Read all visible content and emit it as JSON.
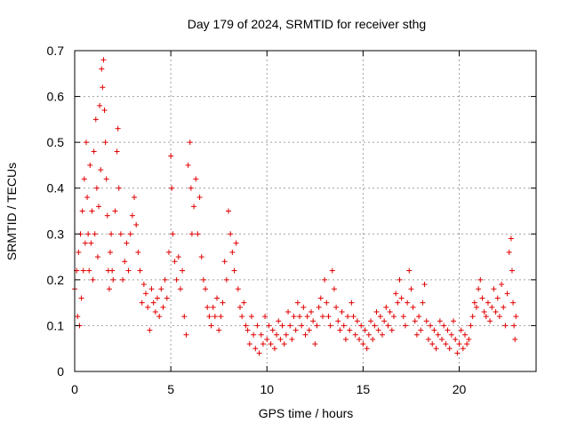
{
  "chart_data": {
    "type": "scatter",
    "title": "Day 179 of 2024, SRMTID for receiver sthg",
    "xlabel": "GPS time / hours",
    "ylabel": "SRMTID / TECUs",
    "xlim": [
      0,
      24
    ],
    "ylim": [
      0,
      0.7
    ],
    "x_ticks": [
      0,
      5,
      10,
      15,
      20
    ],
    "y_ticks": [
      0,
      0.1,
      0.2,
      0.3,
      0.4,
      0.5,
      0.6,
      0.7
    ],
    "x_tick_labels": [
      "0",
      "5",
      "10",
      "15",
      "20"
    ],
    "y_tick_labels": [
      "0",
      "0.1",
      "0.2",
      "0.3",
      "0.4",
      "0.5",
      "0.6",
      "0.7"
    ],
    "grid": true,
    "marker": "+",
    "color": "#e00000",
    "series": [
      {
        "name": "SRMTID",
        "points": [
          [
            0.0,
            0.18
          ],
          [
            0.1,
            0.22
          ],
          [
            0.15,
            0.12
          ],
          [
            0.2,
            0.26
          ],
          [
            0.25,
            0.1
          ],
          [
            0.3,
            0.3
          ],
          [
            0.35,
            0.16
          ],
          [
            0.4,
            0.35
          ],
          [
            0.45,
            0.22
          ],
          [
            0.5,
            0.42
          ],
          [
            0.55,
            0.28
          ],
          [
            0.6,
            0.5
          ],
          [
            0.65,
            0.38
          ],
          [
            0.7,
            0.3
          ],
          [
            0.75,
            0.22
          ],
          [
            0.8,
            0.45
          ],
          [
            0.85,
            0.28
          ],
          [
            0.9,
            0.35
          ],
          [
            0.95,
            0.2
          ],
          [
            1.0,
            0.48
          ],
          [
            1.05,
            0.3
          ],
          [
            1.1,
            0.55
          ],
          [
            1.15,
            0.4
          ],
          [
            1.2,
            0.25
          ],
          [
            1.25,
            0.36
          ],
          [
            1.3,
            0.58
          ],
          [
            1.35,
            0.44
          ],
          [
            1.4,
            0.66
          ],
          [
            1.45,
            0.62
          ],
          [
            1.5,
            0.68
          ],
          [
            1.55,
            0.57
          ],
          [
            1.6,
            0.5
          ],
          [
            1.65,
            0.42
          ],
          [
            1.7,
            0.34
          ],
          [
            1.75,
            0.22
          ],
          [
            1.8,
            0.18
          ],
          [
            1.85,
            0.26
          ],
          [
            1.9,
            0.3
          ],
          [
            1.95,
            0.22
          ],
          [
            2.0,
            0.2
          ],
          [
            2.1,
            0.35
          ],
          [
            2.2,
            0.48
          ],
          [
            2.25,
            0.53
          ],
          [
            2.3,
            0.4
          ],
          [
            2.4,
            0.3
          ],
          [
            2.5,
            0.2
          ],
          [
            2.6,
            0.24
          ],
          [
            2.7,
            0.28
          ],
          [
            2.8,
            0.22
          ],
          [
            2.9,
            0.3
          ],
          [
            3.0,
            0.34
          ],
          [
            3.1,
            0.38
          ],
          [
            3.2,
            0.32
          ],
          [
            3.3,
            0.26
          ],
          [
            3.4,
            0.22
          ],
          [
            3.5,
            0.15
          ],
          [
            3.6,
            0.19
          ],
          [
            3.7,
            0.17
          ],
          [
            3.8,
            0.14
          ],
          [
            3.9,
            0.09
          ],
          [
            4.0,
            0.18
          ],
          [
            4.1,
            0.15
          ],
          [
            4.2,
            0.13
          ],
          [
            4.3,
            0.16
          ],
          [
            4.4,
            0.12
          ],
          [
            4.5,
            0.18
          ],
          [
            4.6,
            0.14
          ],
          [
            4.7,
            0.2
          ],
          [
            4.8,
            0.16
          ],
          [
            4.9,
            0.26
          ],
          [
            5.0,
            0.47
          ],
          [
            5.05,
            0.4
          ],
          [
            5.1,
            0.3
          ],
          [
            5.2,
            0.24
          ],
          [
            5.3,
            0.2
          ],
          [
            5.4,
            0.25
          ],
          [
            5.5,
            0.18
          ],
          [
            5.6,
            0.22
          ],
          [
            5.7,
            0.12
          ],
          [
            5.8,
            0.08
          ],
          [
            5.9,
            0.45
          ],
          [
            6.0,
            0.5
          ],
          [
            6.05,
            0.4
          ],
          [
            6.1,
            0.3
          ],
          [
            6.2,
            0.36
          ],
          [
            6.3,
            0.42
          ],
          [
            6.4,
            0.3
          ],
          [
            6.5,
            0.38
          ],
          [
            6.6,
            0.25
          ],
          [
            6.7,
            0.2
          ],
          [
            6.8,
            0.18
          ],
          [
            6.9,
            0.14
          ],
          [
            7.0,
            0.12
          ],
          [
            7.1,
            0.1
          ],
          [
            7.2,
            0.14
          ],
          [
            7.3,
            0.12
          ],
          [
            7.4,
            0.16
          ],
          [
            7.5,
            0.09
          ],
          [
            7.6,
            0.12
          ],
          [
            7.7,
            0.15
          ],
          [
            7.8,
            0.24
          ],
          [
            7.9,
            0.2
          ],
          [
            8.0,
            0.35
          ],
          [
            8.1,
            0.3
          ],
          [
            8.2,
            0.26
          ],
          [
            8.3,
            0.22
          ],
          [
            8.4,
            0.28
          ],
          [
            8.5,
            0.18
          ],
          [
            8.6,
            0.14
          ],
          [
            8.7,
            0.12
          ],
          [
            8.8,
            0.15
          ],
          [
            8.9,
            0.1
          ],
          [
            9.0,
            0.09
          ],
          [
            9.1,
            0.06
          ],
          [
            9.2,
            0.12
          ],
          [
            9.3,
            0.08
          ],
          [
            9.4,
            0.05
          ],
          [
            9.5,
            0.1
          ],
          [
            9.6,
            0.04
          ],
          [
            9.7,
            0.08
          ],
          [
            9.8,
            0.06
          ],
          [
            9.9,
            0.12
          ],
          [
            10.0,
            0.07
          ],
          [
            10.1,
            0.1
          ],
          [
            10.2,
            0.06
          ],
          [
            10.3,
            0.09
          ],
          [
            10.4,
            0.05
          ],
          [
            10.5,
            0.08
          ],
          [
            10.6,
            0.11
          ],
          [
            10.7,
            0.07
          ],
          [
            10.8,
            0.1
          ],
          [
            10.9,
            0.06
          ],
          [
            11.0,
            0.08
          ],
          [
            11.1,
            0.13
          ],
          [
            11.2,
            0.1
          ],
          [
            11.3,
            0.07
          ],
          [
            11.4,
            0.12
          ],
          [
            11.5,
            0.09
          ],
          [
            11.6,
            0.15
          ],
          [
            11.7,
            0.12
          ],
          [
            11.8,
            0.1
          ],
          [
            11.9,
            0.14
          ],
          [
            12.0,
            0.08
          ],
          [
            12.1,
            0.12
          ],
          [
            12.2,
            0.09
          ],
          [
            12.3,
            0.13
          ],
          [
            12.4,
            0.11
          ],
          [
            12.5,
            0.06
          ],
          [
            12.6,
            0.1
          ],
          [
            12.7,
            0.14
          ],
          [
            12.8,
            0.16
          ],
          [
            12.9,
            0.12
          ],
          [
            13.0,
            0.2
          ],
          [
            13.1,
            0.15
          ],
          [
            13.2,
            0.12
          ],
          [
            13.3,
            0.1
          ],
          [
            13.4,
            0.22
          ],
          [
            13.5,
            0.18
          ],
          [
            13.6,
            0.14
          ],
          [
            13.7,
            0.11
          ],
          [
            13.8,
            0.09
          ],
          [
            13.9,
            0.13
          ],
          [
            14.0,
            0.1
          ],
          [
            14.1,
            0.07
          ],
          [
            14.2,
            0.12
          ],
          [
            14.3,
            0.09
          ],
          [
            14.4,
            0.15
          ],
          [
            14.5,
            0.12
          ],
          [
            14.6,
            0.08
          ],
          [
            14.7,
            0.11
          ],
          [
            14.8,
            0.07
          ],
          [
            14.9,
            0.1
          ],
          [
            15.0,
            0.06
          ],
          [
            15.1,
            0.09
          ],
          [
            15.2,
            0.05
          ],
          [
            15.3,
            0.08
          ],
          [
            15.4,
            0.11
          ],
          [
            15.5,
            0.07
          ],
          [
            15.6,
            0.1
          ],
          [
            15.7,
            0.13
          ],
          [
            15.8,
            0.09
          ],
          [
            15.9,
            0.12
          ],
          [
            16.0,
            0.08
          ],
          [
            16.1,
            0.11
          ],
          [
            16.2,
            0.14
          ],
          [
            16.3,
            0.1
          ],
          [
            16.4,
            0.13
          ],
          [
            16.5,
            0.09
          ],
          [
            16.6,
            0.12
          ],
          [
            16.7,
            0.17
          ],
          [
            16.8,
            0.15
          ],
          [
            16.9,
            0.2
          ],
          [
            17.0,
            0.16
          ],
          [
            17.1,
            0.12
          ],
          [
            17.2,
            0.1
          ],
          [
            17.3,
            0.15
          ],
          [
            17.4,
            0.22
          ],
          [
            17.5,
            0.18
          ],
          [
            17.6,
            0.14
          ],
          [
            17.7,
            0.11
          ],
          [
            17.8,
            0.08
          ],
          [
            17.9,
            0.12
          ],
          [
            18.0,
            0.09
          ],
          [
            18.1,
            0.15
          ],
          [
            18.2,
            0.19
          ],
          [
            18.3,
            0.11
          ],
          [
            18.4,
            0.07
          ],
          [
            18.5,
            0.1
          ],
          [
            18.6,
            0.06
          ],
          [
            18.7,
            0.09
          ],
          [
            18.8,
            0.05
          ],
          [
            18.9,
            0.08
          ],
          [
            19.0,
            0.11
          ],
          [
            19.1,
            0.07
          ],
          [
            19.2,
            0.1
          ],
          [
            19.3,
            0.06
          ],
          [
            19.4,
            0.09
          ],
          [
            19.5,
            0.05
          ],
          [
            19.6,
            0.08
          ],
          [
            19.7,
            0.11
          ],
          [
            19.8,
            0.07
          ],
          [
            19.9,
            0.04
          ],
          [
            20.0,
            0.06
          ],
          [
            20.1,
            0.09
          ],
          [
            20.2,
            0.05
          ],
          [
            20.3,
            0.08
          ],
          [
            20.4,
            0.06
          ],
          [
            20.5,
            0.07
          ],
          [
            20.6,
            0.1
          ],
          [
            20.7,
            0.12
          ],
          [
            20.8,
            0.15
          ],
          [
            20.9,
            0.14
          ],
          [
            21.0,
            0.18
          ],
          [
            21.1,
            0.2
          ],
          [
            21.2,
            0.16
          ],
          [
            21.3,
            0.13
          ],
          [
            21.4,
            0.12
          ],
          [
            21.5,
            0.15
          ],
          [
            21.6,
            0.11
          ],
          [
            21.7,
            0.14
          ],
          [
            21.8,
            0.18
          ],
          [
            21.9,
            0.13
          ],
          [
            22.0,
            0.16
          ],
          [
            22.1,
            0.12
          ],
          [
            22.2,
            0.19
          ],
          [
            22.3,
            0.14
          ],
          [
            22.4,
            0.1
          ],
          [
            22.5,
            0.17
          ],
          [
            22.6,
            0.26
          ],
          [
            22.7,
            0.29
          ],
          [
            22.75,
            0.22
          ],
          [
            22.8,
            0.15
          ],
          [
            22.85,
            0.1
          ],
          [
            22.9,
            0.07
          ],
          [
            22.95,
            0.12
          ]
        ]
      }
    ]
  }
}
